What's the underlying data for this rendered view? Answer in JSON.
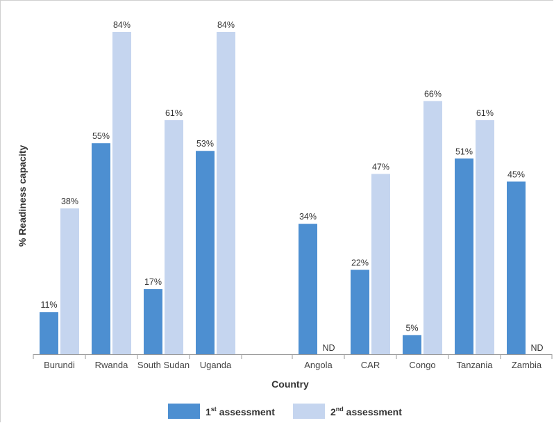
{
  "chart_data": {
    "type": "bar",
    "ylabel": "% Readiness capacity",
    "xlabel": "Country",
    "ylim": [
      0,
      100
    ],
    "grid": false,
    "legend_position": "bottom",
    "categories": [
      "Burundi",
      "Rwanda",
      "South Sudan",
      "Uganda",
      "Angola",
      "CAR",
      "Congo",
      "Tanzania",
      "Zambia"
    ],
    "series": [
      {
        "name": "1st assessment",
        "color": "#4d8fd1",
        "values": [
          11,
          55,
          17,
          53,
          34,
          22,
          5,
          51,
          45
        ],
        "labels": [
          "11%",
          "55%",
          "17%",
          "53%",
          "34%",
          "22%",
          "5%",
          "51%",
          "45%"
        ]
      },
      {
        "name": "2nd assessment",
        "color": "#c5d5ef",
        "values": [
          38,
          84,
          61,
          84,
          null,
          47,
          66,
          61,
          null
        ],
        "labels": [
          "38%",
          "84%",
          "61%",
          "84%",
          "ND",
          "47%",
          "66%",
          "61%",
          "ND"
        ]
      }
    ],
    "legend": {
      "items": [
        {
          "base": "1",
          "sup": "st",
          "rest": " assessment"
        },
        {
          "base": "2",
          "sup": "nd",
          "rest": " assessment"
        }
      ]
    }
  }
}
